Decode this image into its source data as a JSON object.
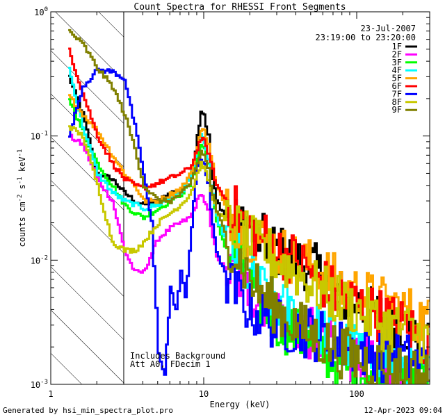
{
  "chart_data": {
    "type": "line",
    "title": "Count Spectra for RHESSI Front Segments",
    "xlabel": "Energy (keV)",
    "ylabel_parts": [
      "counts cm",
      "-2",
      " s",
      "-1",
      " keV",
      "-1"
    ],
    "xscale": "log",
    "yscale": "log",
    "xlim": [
      1.0,
      300.0
    ],
    "ylim": [
      0.001,
      1.0
    ],
    "x_ticks": [
      {
        "value": 1,
        "label": "1"
      },
      {
        "value": 10,
        "label": "10"
      },
      {
        "value": 100,
        "label": "100"
      }
    ],
    "y_ticks": [
      {
        "value": 0.001,
        "base": "10",
        "exp": "-3"
      },
      {
        "value": 0.01,
        "base": "10",
        "exp": "-2"
      },
      {
        "value": 0.1,
        "base": "10",
        "exp": "-1"
      },
      {
        "value": 1.0,
        "base": "10",
        "exp": "0"
      }
    ],
    "shaded_region": {
      "from_keV": 1.0,
      "to_keV": 3.0,
      "pattern": "diagonal-hatch"
    },
    "date": "23-Jul-2007",
    "time_range": "23:19:00 to 23:20:00",
    "annotation_lines": [
      "Includes Background",
      "Att A0, FDecim 1"
    ],
    "legend_position": "top-right",
    "series": [
      {
        "name": "1F",
        "color": "#000000",
        "energies": [
          1.3,
          1.6,
          2.0,
          2.5,
          3.0,
          3.5,
          4.0,
          5.0,
          6.0,
          7.0,
          8.0,
          8.5,
          9.0,
          9.5,
          10.0,
          10.5,
          11.0,
          12.0,
          14.0,
          17.0,
          20.0,
          25.0,
          30.0,
          40.0,
          50.0,
          60.0,
          70.0,
          80.0,
          100.0,
          120.0,
          150.0,
          200.0,
          250.0,
          300.0
        ],
        "values": [
          0.3,
          0.15,
          0.05,
          0.045,
          0.035,
          0.03,
          0.028,
          0.03,
          0.035,
          0.036,
          0.045,
          0.06,
          0.1,
          0.16,
          0.15,
          0.1,
          0.055,
          0.03,
          0.022,
          0.018,
          0.016,
          0.014,
          0.012,
          0.01,
          0.009,
          0.007,
          0.006,
          0.005,
          0.0045,
          0.0038,
          0.0035,
          0.003,
          0.0025,
          0.002
        ]
      },
      {
        "name": "2F",
        "color": "#ff00ff",
        "energies": [
          1.3,
          1.6,
          2.0,
          2.5,
          3.0,
          3.5,
          4.0,
          5.0,
          6.0,
          7.0,
          8.0,
          8.5,
          9.0,
          9.5,
          10.0,
          10.5,
          11.0,
          12.0,
          14.0,
          17.0,
          20.0,
          25.0,
          30.0,
          40.0,
          50.0,
          60.0,
          70.0,
          80.0,
          100.0,
          120.0,
          150.0,
          200.0,
          250.0,
          300.0
        ],
        "values": [
          0.1,
          0.085,
          0.045,
          0.03,
          0.012,
          0.008,
          0.008,
          0.015,
          0.018,
          0.02,
          0.022,
          0.025,
          0.03,
          0.035,
          0.03,
          0.025,
          0.018,
          0.011,
          0.008,
          0.007,
          0.0055,
          0.0045,
          0.004,
          0.003,
          0.0025,
          0.0022,
          0.002,
          0.0018,
          0.0016,
          0.0014,
          0.0012,
          0.0011,
          0.001,
          0.001
        ]
      },
      {
        "name": "3F",
        "color": "#00ff00",
        "energies": [
          1.3,
          1.6,
          2.0,
          2.5,
          3.0,
          3.5,
          4.0,
          5.0,
          6.0,
          7.0,
          8.0,
          8.5,
          9.0,
          9.5,
          10.0,
          10.5,
          11.0,
          12.0,
          14.0,
          17.0,
          20.0,
          25.0,
          30.0,
          40.0,
          50.0,
          60.0,
          70.0,
          80.0,
          100.0,
          120.0,
          150.0,
          200.0,
          250.0,
          300.0
        ],
        "values": [
          0.2,
          0.11,
          0.06,
          0.04,
          0.028,
          0.024,
          0.022,
          0.026,
          0.03,
          0.034,
          0.04,
          0.05,
          0.07,
          0.085,
          0.08,
          0.06,
          0.04,
          0.02,
          0.012,
          0.009,
          0.006,
          0.004,
          0.0032,
          0.0025,
          0.0021,
          0.0018,
          0.0016,
          0.0014,
          0.0013,
          0.0012,
          0.0011,
          0.001,
          0.001,
          0.001
        ]
      },
      {
        "name": "4F",
        "color": "#00ffff",
        "energies": [
          1.3,
          1.6,
          2.0,
          2.5,
          3.0,
          3.5,
          4.0,
          5.0,
          6.0,
          7.0,
          8.0,
          8.5,
          9.0,
          9.5,
          10.0,
          10.5,
          11.0,
          12.0,
          14.0,
          17.0,
          20.0,
          25.0,
          30.0,
          40.0,
          50.0,
          60.0,
          70.0,
          80.0,
          100.0,
          120.0,
          150.0,
          200.0,
          250.0,
          300.0
        ],
        "values": [
          0.35,
          0.12,
          0.05,
          0.035,
          0.03,
          0.028,
          0.026,
          0.028,
          0.032,
          0.035,
          0.045,
          0.06,
          0.08,
          0.1,
          0.09,
          0.065,
          0.04,
          0.022,
          0.014,
          0.01,
          0.007,
          0.0055,
          0.0045,
          0.0035,
          0.003,
          0.0027,
          0.0025,
          0.0022,
          0.002,
          0.0018,
          0.0016,
          0.0014,
          0.0012,
          0.0011
        ]
      },
      {
        "name": "5F",
        "color": "#ffa500",
        "energies": [
          1.3,
          1.6,
          2.0,
          2.5,
          3.0,
          3.5,
          4.0,
          5.0,
          6.0,
          7.0,
          8.0,
          8.5,
          9.0,
          9.5,
          10.0,
          10.5,
          11.0,
          12.0,
          14.0,
          17.0,
          20.0,
          25.0,
          30.0,
          40.0,
          50.0,
          60.0,
          70.0,
          80.0,
          100.0,
          120.0,
          150.0,
          200.0,
          250.0,
          300.0
        ],
        "values": [
          0.21,
          0.15,
          0.11,
          0.07,
          0.05,
          0.04,
          0.03,
          0.03,
          0.034,
          0.038,
          0.048,
          0.06,
          0.085,
          0.11,
          0.11,
          0.09,
          0.07,
          0.04,
          0.025,
          0.02,
          0.016,
          0.014,
          0.012,
          0.01,
          0.009,
          0.008,
          0.007,
          0.006,
          0.0055,
          0.005,
          0.0045,
          0.004,
          0.0035,
          0.003
        ]
      },
      {
        "name": "6F",
        "color": "#ff0000",
        "energies": [
          1.3,
          1.6,
          2.0,
          2.5,
          3.0,
          3.5,
          4.0,
          5.0,
          6.0,
          7.0,
          8.0,
          8.5,
          9.0,
          9.5,
          10.0,
          10.5,
          11.0,
          12.0,
          14.0,
          17.0,
          20.0,
          25.0,
          30.0,
          40.0,
          50.0,
          60.0,
          70.0,
          80.0,
          100.0,
          120.0,
          150.0,
          200.0,
          250.0,
          300.0
        ],
        "values": [
          0.5,
          0.22,
          0.1,
          0.06,
          0.045,
          0.04,
          0.038,
          0.042,
          0.046,
          0.05,
          0.055,
          0.065,
          0.08,
          0.095,
          0.09,
          0.075,
          0.06,
          0.04,
          0.03,
          0.022,
          0.018,
          0.015,
          0.012,
          0.01,
          0.008,
          0.0065,
          0.0055,
          0.005,
          0.0045,
          0.004,
          0.0035,
          0.003,
          0.0025,
          0.002
        ]
      },
      {
        "name": "7F",
        "color": "#0000ff",
        "energies": [
          1.3,
          1.6,
          2.0,
          2.5,
          3.0,
          3.5,
          4.0,
          4.5,
          5.0,
          5.5,
          6.0,
          6.5,
          7.0,
          7.5,
          8.0,
          8.5,
          9.0,
          9.5,
          10.0,
          10.5,
          11.0,
          12.0,
          14.0,
          17.0,
          20.0,
          25.0,
          30.0,
          40.0,
          50.0,
          60.0,
          70.0,
          80.0,
          100.0,
          120.0,
          150.0,
          200.0,
          250.0,
          300.0
        ],
        "values": [
          0.1,
          0.25,
          0.34,
          0.33,
          0.29,
          0.12,
          0.05,
          0.02,
          0.0018,
          0.0012,
          0.006,
          0.004,
          0.008,
          0.005,
          0.012,
          0.03,
          0.055,
          0.065,
          0.06,
          0.04,
          0.025,
          0.012,
          0.007,
          0.005,
          0.004,
          0.0035,
          0.003,
          0.0028,
          0.0026,
          0.0024,
          0.0022,
          0.002,
          0.0019,
          0.0018,
          0.0017,
          0.0016,
          0.0015,
          0.0014
        ]
      },
      {
        "name": "8F",
        "color": "#c8c800",
        "energies": [
          1.3,
          1.6,
          2.0,
          2.5,
          3.0,
          3.5,
          4.0,
          5.0,
          6.0,
          7.0,
          8.0,
          8.5,
          9.0,
          9.5,
          10.0,
          10.5,
          11.0,
          12.0,
          14.0,
          17.0,
          20.0,
          25.0,
          30.0,
          40.0,
          50.0,
          60.0,
          70.0,
          80.0,
          100.0,
          120.0,
          150.0,
          200.0,
          250.0,
          300.0
        ],
        "values": [
          0.12,
          0.1,
          0.04,
          0.014,
          0.012,
          0.012,
          0.014,
          0.02,
          0.024,
          0.028,
          0.034,
          0.04,
          0.05,
          0.06,
          0.055,
          0.045,
          0.035,
          0.025,
          0.02,
          0.017,
          0.014,
          0.012,
          0.01,
          0.008,
          0.0065,
          0.0055,
          0.005,
          0.0045,
          0.004,
          0.0035,
          0.003,
          0.0028,
          0.0025,
          0.0022
        ]
      },
      {
        "name": "9F",
        "color": "#808000",
        "energies": [
          1.3,
          1.6,
          2.0,
          2.5,
          3.0,
          3.5,
          4.0,
          5.0,
          6.0,
          7.0,
          8.0,
          8.5,
          9.0,
          9.5,
          10.0,
          10.5,
          11.0,
          12.0,
          14.0,
          17.0,
          20.0,
          25.0,
          30.0,
          40.0,
          50.0,
          60.0,
          70.0,
          80.0,
          100.0,
          120.0,
          150.0,
          200.0,
          250.0,
          300.0
        ],
        "values": [
          0.7,
          0.55,
          0.35,
          0.25,
          0.15,
          0.08,
          0.04,
          0.03,
          0.03,
          0.034,
          0.04,
          0.05,
          0.06,
          0.075,
          0.07,
          0.055,
          0.04,
          0.025,
          0.015,
          0.01,
          0.007,
          0.005,
          0.004,
          0.003,
          0.0025,
          0.0022,
          0.002,
          0.0018,
          0.0016,
          0.0015,
          0.0014,
          0.0013,
          0.0012,
          0.0011
        ]
      }
    ]
  },
  "footer": {
    "generated_by": "Generated by hsi_min_spectra_plot.pro",
    "timestamp": "12-Apr-2023 09:04"
  }
}
